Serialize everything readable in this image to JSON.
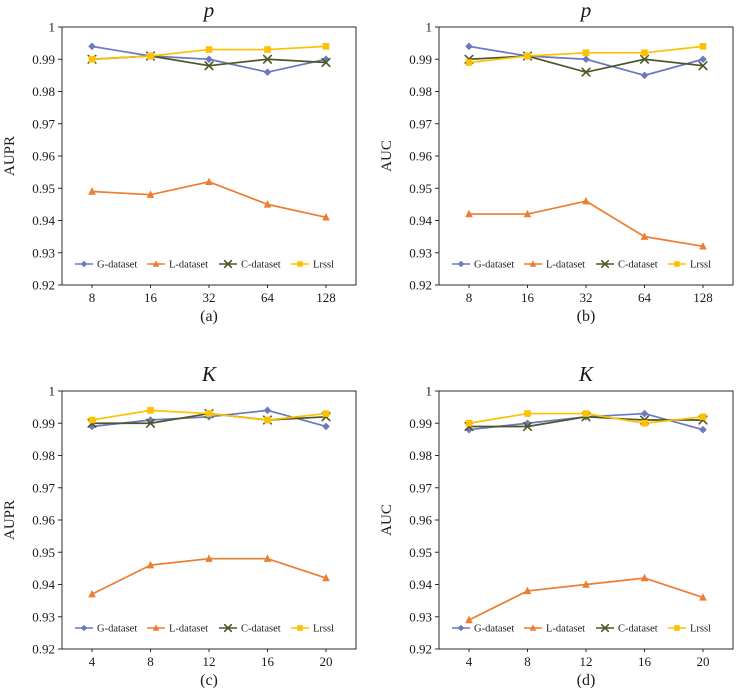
{
  "figure": {
    "background": "#ffffff",
    "text_color": "#1a1a1a",
    "axis_color": "#2b2b2b"
  },
  "chart_data": [
    {
      "type": "line",
      "title": "p",
      "ylabel": "AUPR",
      "caption": "(a)",
      "categories": [
        "8",
        "16",
        "32",
        "64",
        "128"
      ],
      "ylim": [
        0.92,
        1
      ],
      "ytick_step": 0.01,
      "grid": false,
      "legend_position": "bottom-inside",
      "series": [
        {
          "name": "G-dataset",
          "color": "#6b79c0",
          "marker": "diamond",
          "values": [
            0.994,
            0.991,
            0.99,
            0.986,
            0.99
          ]
        },
        {
          "name": "L-dataset",
          "color": "#ed7d31",
          "marker": "triangle",
          "values": [
            0.949,
            0.948,
            0.952,
            0.945,
            0.941
          ]
        },
        {
          "name": "C-dataset",
          "color": "#4d5726",
          "marker": "x",
          "values": [
            0.99,
            0.991,
            0.988,
            0.99,
            0.989
          ]
        },
        {
          "name": "Lrssl",
          "color": "#ffc000",
          "marker": "square",
          "values": [
            0.99,
            0.991,
            0.993,
            0.993,
            0.994
          ]
        }
      ]
    },
    {
      "type": "line",
      "title": "p",
      "ylabel": "AUC",
      "caption": "(b)",
      "categories": [
        "8",
        "16",
        "32",
        "64",
        "128"
      ],
      "ylim": [
        0.92,
        1
      ],
      "ytick_step": 0.01,
      "grid": false,
      "legend_position": "bottom-inside",
      "series": [
        {
          "name": "G-dataset",
          "color": "#6b79c0",
          "marker": "diamond",
          "values": [
            0.994,
            0.991,
            0.99,
            0.985,
            0.99
          ]
        },
        {
          "name": "L-dataset",
          "color": "#ed7d31",
          "marker": "triangle",
          "values": [
            0.942,
            0.942,
            0.946,
            0.935,
            0.932
          ]
        },
        {
          "name": "C-dataset",
          "color": "#4d5726",
          "marker": "x",
          "values": [
            0.99,
            0.991,
            0.986,
            0.99,
            0.988
          ]
        },
        {
          "name": "Lrssl",
          "color": "#ffc000",
          "marker": "square",
          "values": [
            0.989,
            0.991,
            0.992,
            0.992,
            0.994
          ]
        }
      ]
    },
    {
      "type": "line",
      "title": "K",
      "ylabel": "AUPR",
      "caption": "(c)",
      "categories": [
        "4",
        "8",
        "12",
        "16",
        "20"
      ],
      "ylim": [
        0.92,
        1
      ],
      "ytick_step": 0.01,
      "grid": false,
      "legend_position": "bottom-inside",
      "series": [
        {
          "name": "G-dataset",
          "color": "#6b79c0",
          "marker": "diamond",
          "values": [
            0.989,
            0.991,
            0.992,
            0.994,
            0.989
          ]
        },
        {
          "name": "L-dataset",
          "color": "#ed7d31",
          "marker": "triangle",
          "values": [
            0.937,
            0.946,
            0.948,
            0.948,
            0.942
          ]
        },
        {
          "name": "C-dataset",
          "color": "#4d5726",
          "marker": "x",
          "values": [
            0.99,
            0.99,
            0.993,
            0.991,
            0.992
          ]
        },
        {
          "name": "Lrssl",
          "color": "#ffc000",
          "marker": "square",
          "values": [
            0.991,
            0.994,
            0.993,
            0.991,
            0.993
          ]
        }
      ]
    },
    {
      "type": "line",
      "title": "K",
      "ylabel": "AUC",
      "caption": "(d)",
      "categories": [
        "4",
        "8",
        "12",
        "16",
        "20"
      ],
      "ylim": [
        0.92,
        1
      ],
      "ytick_step": 0.01,
      "grid": false,
      "legend_position": "bottom-inside",
      "series": [
        {
          "name": "G-dataset",
          "color": "#6b79c0",
          "marker": "diamond",
          "values": [
            0.988,
            0.99,
            0.992,
            0.993,
            0.988
          ]
        },
        {
          "name": "L-dataset",
          "color": "#ed7d31",
          "marker": "triangle",
          "values": [
            0.929,
            0.938,
            0.94,
            0.942,
            0.936
          ]
        },
        {
          "name": "C-dataset",
          "color": "#4d5726",
          "marker": "x",
          "values": [
            0.989,
            0.989,
            0.992,
            0.991,
            0.991
          ]
        },
        {
          "name": "Lrssl",
          "color": "#ffc000",
          "marker": "square",
          "values": [
            0.99,
            0.993,
            0.993,
            0.99,
            0.992
          ]
        }
      ]
    }
  ]
}
